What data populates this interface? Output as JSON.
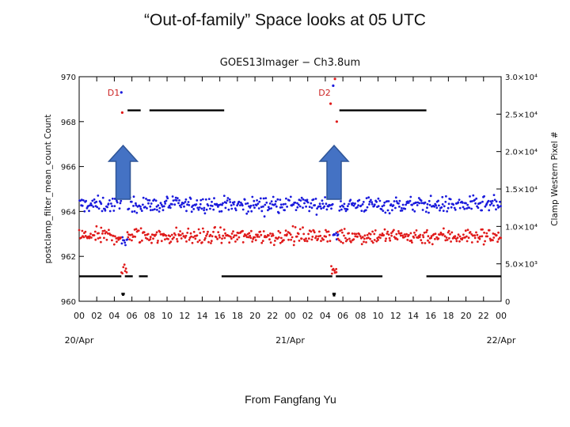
{
  "slide": {
    "title": "“Out-of-family” Space looks at 05 UTC",
    "credit": "From Fangfang Yu"
  },
  "colors": {
    "blue_series": "#1a1adc",
    "red_series": "#e01b1b",
    "black_series": "#000000",
    "annotation_red": "#cc2222",
    "arrow_fill": "#4472c4",
    "arrow_stroke": "#2f5597"
  },
  "chart_data": {
    "type": "scatter",
    "title": "GOES13Imager − Ch3.8um",
    "ylabel_left": "postclamp_filter_mean_count Count",
    "ylabel_right": "Clamp Western Pixel #",
    "y_left_lim": [
      960,
      970
    ],
    "y_left_ticks": [
      "960",
      "962",
      "964",
      "966",
      "968",
      "970"
    ],
    "y_right_lim": [
      0,
      30000
    ],
    "y_right_ticks": [
      "0",
      "5.0×10³",
      "1.0×10⁴",
      "1.5×10⁴",
      "2.0×10⁴",
      "2.5×10⁴",
      "3.0×10⁴"
    ],
    "x_range_hours": [
      0,
      48
    ],
    "x_hour_ticks": [
      "00",
      "02",
      "04",
      "06",
      "08",
      "10",
      "12",
      "14",
      "16",
      "18",
      "20",
      "22",
      "00",
      "02",
      "04",
      "06",
      "08",
      "10",
      "12",
      "14",
      "16",
      "18",
      "20",
      "22",
      "00"
    ],
    "x_date_labels": [
      "20/Apr",
      "21/Apr",
      "22/Apr"
    ],
    "annotations": [
      {
        "label": "D1",
        "x_hour": 5
      },
      {
        "label": "D2",
        "x_hour": 29
      }
    ],
    "arrows_at_hours": [
      5,
      29
    ],
    "series": [
      {
        "name": "",
        "axis": "left",
        "color": "blue",
        "level": 964.3,
        "spread": 0.35,
        "dips": [
          [
            5.2,
            962.4,
            962.9
          ],
          [
            29.2,
            962.6,
            963.1
          ]
        ],
        "outliers": [
          [
            4.8,
            969.3
          ],
          [
            28.9,
            969.6
          ]
        ]
      },
      {
        "name": "",
        "axis": "left",
        "color": "red",
        "level": 962.9,
        "spread": 0.35,
        "dips": [
          [
            5.1,
            961.2,
            961.7
          ],
          [
            29.0,
            961.0,
            961.6
          ]
        ],
        "outliers": [
          [
            4.9,
            968.4
          ],
          [
            29.1,
            969.9
          ],
          [
            28.6,
            968.8
          ],
          [
            29.3,
            968.0
          ]
        ]
      },
      {
        "name": "",
        "axis": "right",
        "color": "black",
        "segments": [
          [
            0,
            4.8,
            3333
          ],
          [
            4.8,
            5.2,
            1000
          ],
          [
            5.2,
            6.1,
            3333
          ],
          [
            5.5,
            7.0,
            25500
          ],
          [
            6.8,
            7.8,
            3333
          ],
          [
            8.0,
            16.5,
            25500
          ],
          [
            16.2,
            28.8,
            3333
          ],
          [
            28.8,
            29.2,
            1000
          ],
          [
            29.2,
            34.5,
            3333
          ],
          [
            29.6,
            39.5,
            25500
          ],
          [
            39.5,
            48.0,
            3333
          ]
        ],
        "dropouts": [
          [
            5.0,
            900
          ],
          [
            29.0,
            800
          ]
        ]
      }
    ]
  }
}
